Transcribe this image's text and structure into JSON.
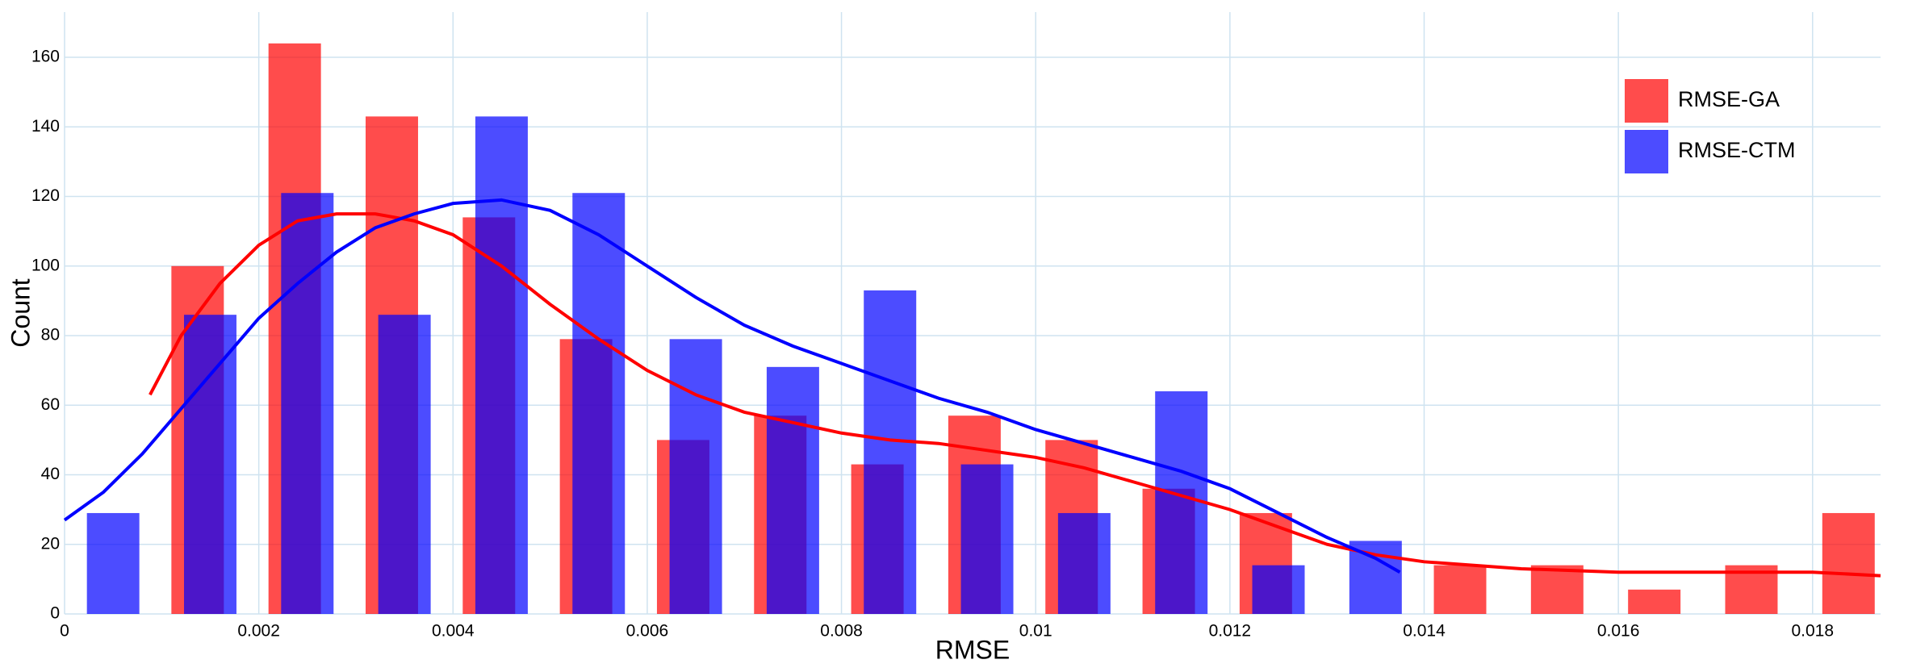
{
  "chart_data": {
    "type": "histogram",
    "xlabel": "RMSE",
    "ylabel": "Count",
    "xlim": [
      0,
      0.0187
    ],
    "ylim": [
      0,
      173
    ],
    "xticks": [
      0,
      0.002,
      0.004,
      0.006,
      0.008,
      0.01,
      0.012,
      0.014,
      0.016,
      0.018
    ],
    "yticks": [
      0,
      20,
      40,
      60,
      80,
      100,
      120,
      140,
      160
    ],
    "grid": true,
    "legend": "upper right",
    "series": [
      {
        "name": "RMSE-GA",
        "color": "#ff0000",
        "bins": [
          0.00087,
          0.00187,
          0.00287,
          0.00387,
          0.00487,
          0.00587,
          0.00687,
          0.00787,
          0.00887,
          0.00987,
          0.01087,
          0.01187,
          0.01287,
          0.01387,
          0.01487,
          0.01587,
          0.01687,
          0.01787,
          0.01887
        ],
        "values": [
          100,
          164,
          143,
          114,
          79,
          50,
          57,
          43,
          57,
          50,
          36,
          29,
          0,
          14,
          14,
          7,
          14,
          29
        ],
        "kde_x": [
          0.00088,
          0.0012,
          0.0016,
          0.002,
          0.0024,
          0.0028,
          0.0032,
          0.0036,
          0.004,
          0.0045,
          0.005,
          0.0055,
          0.006,
          0.0065,
          0.007,
          0.0075,
          0.008,
          0.0085,
          0.009,
          0.0095,
          0.01,
          0.0105,
          0.011,
          0.0115,
          0.012,
          0.0125,
          0.013,
          0.0135,
          0.014,
          0.015,
          0.016,
          0.017,
          0.0175,
          0.018,
          0.0187
        ],
        "kde_y": [
          63,
          80,
          95,
          106,
          113,
          115,
          115,
          113,
          109,
          100,
          89,
          79,
          70,
          63,
          58,
          55,
          52,
          50,
          49,
          47,
          45,
          42,
          38,
          34,
          30,
          25,
          20,
          17,
          15,
          13,
          12,
          12,
          12,
          12,
          11
        ]
      },
      {
        "name": "RMSE-CTM",
        "color": "#0000ff",
        "bins": [
          0,
          0.001,
          0.002,
          0.003,
          0.004,
          0.005,
          0.006,
          0.007,
          0.008,
          0.009,
          0.01,
          0.011,
          0.012,
          0.013,
          0.014
        ],
        "values": [
          29,
          86,
          121,
          86,
          143,
          121,
          79,
          71,
          93,
          43,
          29,
          64,
          14,
          21
        ],
        "kde_x": [
          0,
          0.0004,
          0.0008,
          0.0012,
          0.0016,
          0.002,
          0.0024,
          0.0028,
          0.0032,
          0.0036,
          0.004,
          0.0045,
          0.005,
          0.0055,
          0.006,
          0.0065,
          0.007,
          0.0075,
          0.008,
          0.0085,
          0.009,
          0.0095,
          0.01,
          0.0105,
          0.011,
          0.0115,
          0.012,
          0.0125,
          0.013,
          0.0135,
          0.01375
        ],
        "kde_y": [
          27,
          35,
          46,
          59,
          72,
          85,
          95,
          104,
          111,
          115,
          118,
          119,
          116,
          109,
          100,
          91,
          83,
          77,
          72,
          67,
          62,
          58,
          53,
          49,
          45,
          41,
          36,
          29,
          22,
          16,
          12
        ]
      }
    ]
  }
}
